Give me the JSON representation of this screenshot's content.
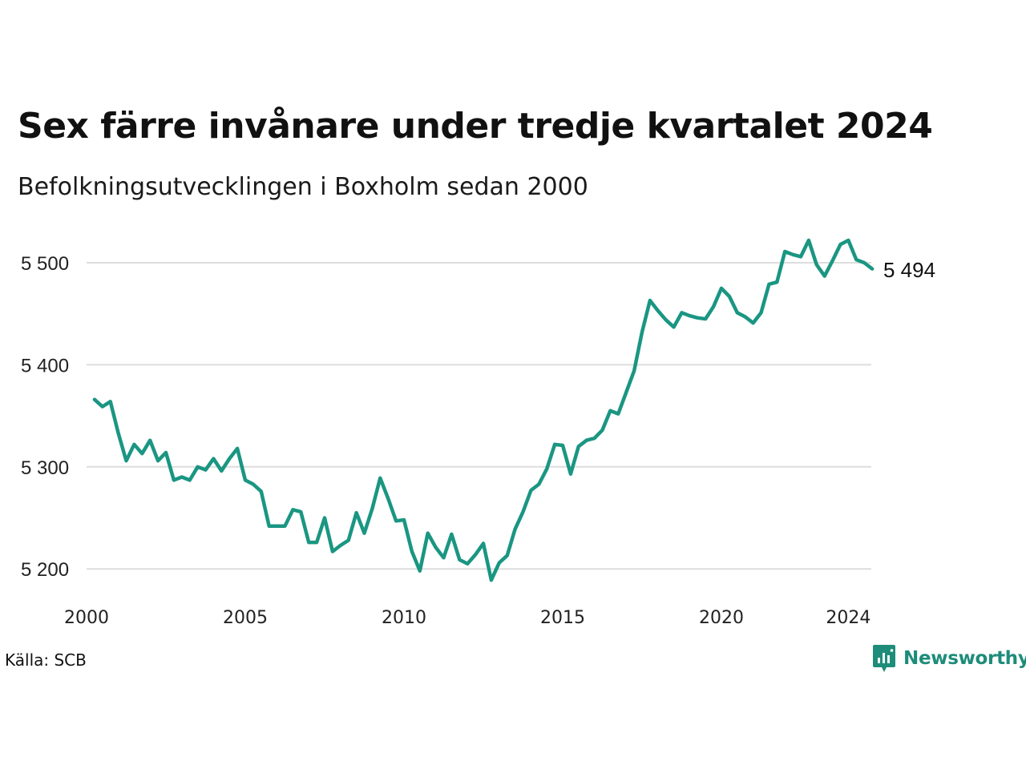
{
  "title": "Sex färre invånare under tredje kvartalet 2024",
  "subtitle": "Befolkningsutvecklingen i Boxholm sedan 2000",
  "source": "Källa: SCB",
  "brand": "Newsworthy",
  "colors": {
    "line": "#1a9682",
    "grid": "#dddddd",
    "brand": "#1e8c7a"
  },
  "chart_data": {
    "type": "line",
    "title": "Sex färre invånare under tredje kvartalet 2024",
    "subtitle": "Befolkningsutvecklingen i Boxholm sedan 2000",
    "xlabel": "",
    "ylabel": "",
    "x_ticks": [
      2000,
      2005,
      2010,
      2015,
      2020,
      2024
    ],
    "y_ticks": [
      5200,
      5300,
      5400,
      5500
    ],
    "y_tick_labels": [
      "5 200",
      "5 300",
      "5 400",
      "5 500"
    ],
    "xlim": [
      2000,
      2024.75
    ],
    "ylim": [
      5190,
      5530
    ],
    "grid": "horizontal",
    "end_label": "5 494",
    "series": [
      {
        "x": [
          2000.25,
          2000.5,
          2000.75,
          2001.0,
          2001.25,
          2001.5,
          2001.75,
          2002.0,
          2002.25,
          2002.5,
          2002.75,
          2003.0,
          2003.25,
          2003.5,
          2003.75,
          2004.0,
          2004.25,
          2004.5,
          2004.75,
          2005.0,
          2005.25,
          2005.5,
          2005.75,
          2006.0,
          2006.25,
          2006.5,
          2006.75,
          2007.0,
          2007.25,
          2007.5,
          2007.75,
          2008.0,
          2008.25,
          2008.5,
          2008.75,
          2009.0,
          2009.25,
          2009.5,
          2009.75,
          2010.0,
          2010.25,
          2010.5,
          2010.75,
          2011.0,
          2011.25,
          2011.5,
          2011.75,
          2012.0,
          2012.25,
          2012.5,
          2012.75,
          2013.0,
          2013.25,
          2013.5,
          2013.75,
          2014.0,
          2014.25,
          2014.5,
          2014.75,
          2015.0,
          2015.25,
          2015.5,
          2015.75,
          2016.0,
          2016.25,
          2016.5,
          2016.75,
          2017.0,
          2017.25,
          2017.5,
          2017.75,
          2018.0,
          2018.25,
          2018.5,
          2018.75,
          2019.0,
          2019.25,
          2019.5,
          2019.75,
          2020.0,
          2020.25,
          2020.5,
          2020.75,
          2021.0,
          2021.25,
          2021.5,
          2021.75,
          2022.0,
          2022.25,
          2022.5,
          2022.75,
          2023.0,
          2023.25,
          2023.5,
          2023.75,
          2024.0,
          2024.25,
          2024.5,
          2024.75
        ],
        "values": [
          5366,
          5359,
          5364,
          5333,
          5306,
          5322,
          5313,
          5326,
          5306,
          5314,
          5287,
          5290,
          5287,
          5300,
          5297,
          5308,
          5296,
          5308,
          5318,
          5287,
          5283,
          5276,
          5242,
          5242,
          5242,
          5258,
          5256,
          5226,
          5226,
          5250,
          5217,
          5223,
          5228,
          5255,
          5235,
          5259,
          5289,
          5269,
          5247,
          5248,
          5217,
          5198,
          5235,
          5221,
          5211,
          5234,
          5209,
          5205,
          5214,
          5225,
          5189,
          5206,
          5213,
          5239,
          5256,
          5277,
          5283,
          5298,
          5322,
          5321,
          5293,
          5320,
          5326,
          5328,
          5336,
          5355,
          5352,
          5373,
          5394,
          5432,
          5463,
          5453,
          5444,
          5437,
          5451,
          5448,
          5446,
          5445,
          5457,
          5475,
          5467,
          5451,
          5447,
          5441,
          5451,
          5479,
          5481,
          5511,
          5508,
          5506,
          5522,
          5498,
          5487,
          5502,
          5518,
          5522,
          5503,
          5500,
          5494
        ]
      }
    ]
  }
}
